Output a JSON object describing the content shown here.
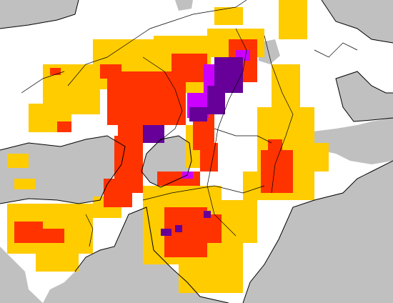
{
  "map": {
    "view": "gridded-precipitation-overlay",
    "region": "",
    "colors": {
      "sea": "#c0c0c0",
      "land": "#ffffff",
      "level_1": "#ffcc00",
      "level_2": "#ff3300",
      "level_3": "#cc00ff",
      "level_4": "#660099",
      "boundary": "#000000"
    },
    "legend": [],
    "labels": []
  }
}
